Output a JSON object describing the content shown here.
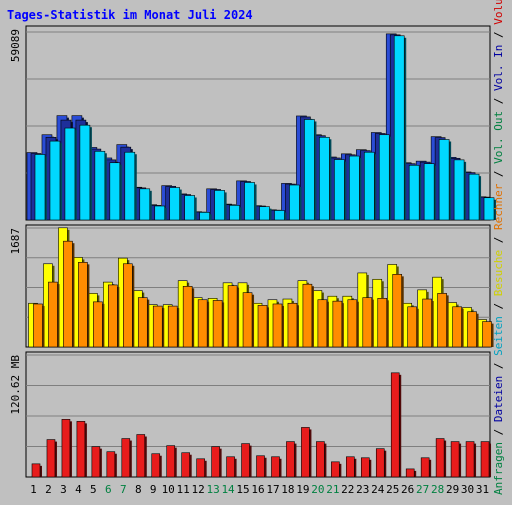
{
  "chart_data": [
    {
      "type": "bar",
      "panel": "top",
      "title": "Tages-Statistik im Monat Juli 2024",
      "categories": [
        "1",
        "2",
        "3",
        "4",
        "5",
        "6",
        "7",
        "8",
        "9",
        "10",
        "11",
        "12",
        "13",
        "14",
        "15",
        "16",
        "17",
        "18",
        "19",
        "20",
        "21",
        "22",
        "23",
        "24",
        "25",
        "26",
        "27",
        "28",
        "29",
        "30",
        "31"
      ],
      "weekend_days": [
        "6",
        "7",
        "13",
        "14",
        "20",
        "21",
        "27",
        "28"
      ],
      "max_label": "59089",
      "ylim": [
        0,
        59089
      ],
      "grid": true,
      "series": [
        {
          "name": "Anfragen",
          "color": "#2a4cd6",
          "values": [
            21200,
            26800,
            32800,
            32800,
            22800,
            19500,
            23700,
            10300,
            4800,
            10800,
            8200,
            2600,
            9800,
            5000,
            12300,
            4500,
            3200,
            11500,
            32700,
            26800,
            19800,
            20800,
            22100,
            27500,
            58500,
            18000,
            18500,
            26200,
            19700,
            15100,
            7300
          ]
        },
        {
          "name": "Dateien",
          "color": "#1e2f9a",
          "values": [
            20900,
            26000,
            31400,
            31400,
            22300,
            18900,
            22900,
            10100,
            4600,
            10600,
            8000,
            2500,
            9600,
            4800,
            12100,
            4400,
            3100,
            11300,
            32400,
            26500,
            19500,
            20500,
            21800,
            27200,
            58200,
            17700,
            18200,
            25900,
            19400,
            14900,
            7200
          ]
        },
        {
          "name": "Seiten",
          "color": "#00d8ff",
          "values": [
            20600,
            24800,
            28900,
            29800,
            21600,
            18000,
            21300,
            9800,
            4400,
            10200,
            7700,
            2400,
            9300,
            4600,
            11800,
            4200,
            3000,
            11000,
            31600,
            26000,
            19000,
            20100,
            21300,
            26800,
            57900,
            17200,
            17700,
            25300,
            18900,
            14400,
            7000
          ]
        }
      ]
    },
    {
      "type": "bar",
      "panel": "middle",
      "categories": [
        "1",
        "2",
        "3",
        "4",
        "5",
        "6",
        "7",
        "8",
        "9",
        "10",
        "11",
        "12",
        "13",
        "14",
        "15",
        "16",
        "17",
        "18",
        "19",
        "20",
        "21",
        "22",
        "23",
        "24",
        "25",
        "26",
        "27",
        "28",
        "29",
        "30",
        "31"
      ],
      "max_label": "1687",
      "ylim": [
        0,
        1687
      ],
      "grid": true,
      "series": [
        {
          "name": "Besuche",
          "color": "#ffff00",
          "values": [
            620,
            1180,
            1690,
            1270,
            760,
            920,
            1260,
            800,
            600,
            600,
            940,
            700,
            690,
            910,
            910,
            620,
            670,
            680,
            940,
            800,
            720,
            720,
            1050,
            960,
            1170,
            620,
            810,
            990,
            630,
            560,
            390
          ]
        },
        {
          "name": "Rechner",
          "color": "#ff8c00",
          "values": [
            610,
            920,
            1500,
            1200,
            640,
            880,
            1180,
            700,
            580,
            580,
            860,
            670,
            660,
            870,
            770,
            590,
            610,
            620,
            890,
            670,
            650,
            670,
            700,
            690,
            1030,
            570,
            680,
            760,
            570,
            500,
            360
          ]
        }
      ]
    },
    {
      "type": "bar",
      "panel": "bottom",
      "categories": [
        "1",
        "2",
        "3",
        "4",
        "5",
        "6",
        "7",
        "8",
        "9",
        "10",
        "11",
        "12",
        "13",
        "14",
        "15",
        "16",
        "17",
        "18",
        "19",
        "20",
        "21",
        "22",
        "23",
        "24",
        "25",
        "26",
        "27",
        "28",
        "29",
        "30",
        "31"
      ],
      "max_label": "120.62 MB",
      "ylim": [
        0,
        120.62
      ],
      "grid": true,
      "series": [
        {
          "name": "Volumen",
          "color": "#e81c1c",
          "values": [
            13,
            37,
            57,
            55,
            30,
            25,
            38,
            42,
            23,
            31,
            24,
            18,
            30,
            20,
            33,
            21,
            20,
            35,
            49,
            35,
            15,
            20,
            19,
            28,
            103,
            8,
            19,
            38,
            35,
            35,
            35
          ]
        }
      ]
    }
  ],
  "right_axis_labels": [
    {
      "text": "Anfragen",
      "color": "#008040"
    },
    {
      "text": "Dateien",
      "color": "#0000a0"
    },
    {
      "text": "Seiten",
      "color": "#00a0c0"
    },
    {
      "text": "Besuche",
      "color": "#d0d000"
    },
    {
      "text": "Rechner",
      "color": "#e07000"
    },
    {
      "text": "Vol. Out",
      "color": "#008040"
    },
    {
      "text": "Vol. In",
      "color": "#0000a0"
    },
    {
      "text": "Volumen",
      "color": "#d00000"
    }
  ],
  "sep_label": " / ",
  "colors": {
    "title": "#0000ff",
    "weekday_label": "#000000",
    "weekend_label": "#008040",
    "frame": "#000000",
    "grid": "#7f7f7f",
    "background": "#c0c0c0"
  }
}
